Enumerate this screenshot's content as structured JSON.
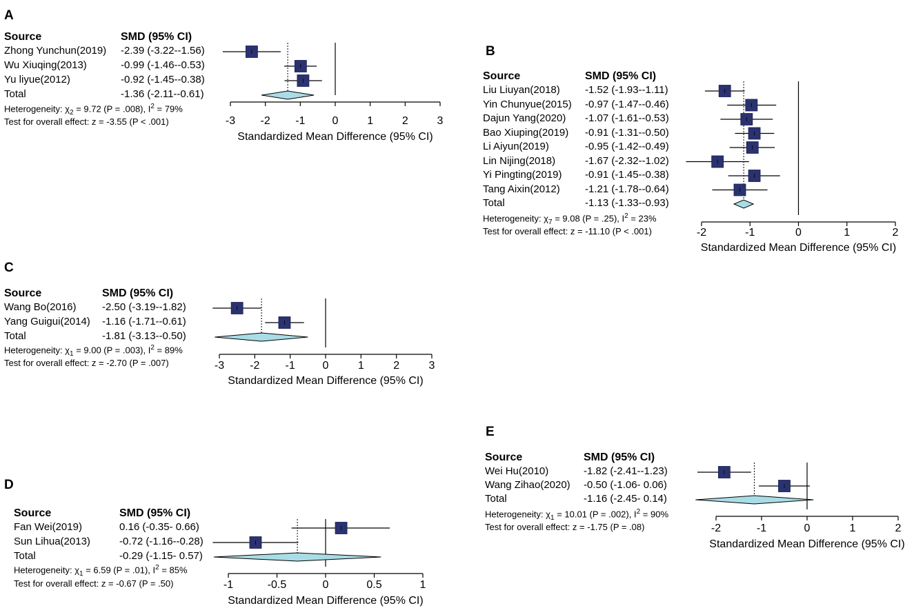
{
  "chart_data": [
    {
      "type": "forest",
      "panel": "A",
      "header_source": "Source",
      "header_effect": "SMD (95% CI)",
      "studies": [
        {
          "name": "Zhong Yunchun(2019)",
          "ci_text": "-2.39 (-3.22--1.56)",
          "smd": -2.39,
          "lower": -3.22,
          "upper": -1.56
        },
        {
          "name": "Wu Xiuqing(2013)",
          "ci_text": "-0.99 (-1.46--0.53)",
          "smd": -0.99,
          "lower": -1.46,
          "upper": -0.53
        },
        {
          "name": "Yu liyue(2012)",
          "ci_text": "-0.92 (-1.45--0.38)",
          "smd": -0.92,
          "lower": -1.45,
          "upper": -0.38
        }
      ],
      "total": {
        "name": "Total",
        "ci_text": "-1.36 (-2.11--0.61)",
        "smd": -1.36,
        "lower": -2.11,
        "upper": -0.61
      },
      "heterogeneity": {
        "prefix": "Heterogeneity: χ",
        "df": "2",
        "rest": "= 9.72 (P = .008), I",
        "i2": "2",
        "end": "= 79%"
      },
      "overall": "Test for overall effect: z = -3.55 (P < .001)",
      "xlim": [
        -3,
        3
      ],
      "ticks": [
        -3,
        -2,
        -1,
        0,
        1,
        2,
        3
      ],
      "tick_labels": [
        "-3",
        "-2",
        "-1",
        "0",
        "1",
        "2",
        "3"
      ],
      "xlabel": "Standardized Mean Difference (95% CI)"
    },
    {
      "type": "forest",
      "panel": "B",
      "header_source": "Source",
      "header_effect": "SMD (95% CI)",
      "studies": [
        {
          "name": "Liu Liuyan(2018)",
          "ci_text": "-1.52 (-1.93--1.11)",
          "smd": -1.52,
          "lower": -1.93,
          "upper": -1.11
        },
        {
          "name": "Yin Chunyue(2015)",
          "ci_text": "-0.97 (-1.47--0.46)",
          "smd": -0.97,
          "lower": -1.47,
          "upper": -0.46
        },
        {
          "name": "Dajun Yang(2020)",
          "ci_text": "-1.07 (-1.61--0.53)",
          "smd": -1.07,
          "lower": -1.61,
          "upper": -0.53
        },
        {
          "name": "Bao Xiuping(2019)",
          "ci_text": "-0.91 (-1.31--0.50)",
          "smd": -0.91,
          "lower": -1.31,
          "upper": -0.5
        },
        {
          "name": "Li Aiyun(2019)",
          "ci_text": "-0.95 (-1.42--0.49)",
          "smd": -0.95,
          "lower": -1.42,
          "upper": -0.49
        },
        {
          "name": "Lin Nijing(2018)",
          "ci_text": "-1.67 (-2.32--1.02)",
          "smd": -1.67,
          "lower": -2.32,
          "upper": -1.02
        },
        {
          "name": "Yi Pingting(2019)",
          "ci_text": "-0.91 (-1.45--0.38)",
          "smd": -0.91,
          "lower": -1.45,
          "upper": -0.38
        },
        {
          "name": "Tang Aixin(2012)",
          "ci_text": "-1.21 (-1.78--0.64)",
          "smd": -1.21,
          "lower": -1.78,
          "upper": -0.64
        }
      ],
      "total": {
        "name": "Total",
        "ci_text": "-1.13 (-1.33--0.93)",
        "smd": -1.13,
        "lower": -1.33,
        "upper": -0.93
      },
      "heterogeneity": {
        "prefix": "Heterogeneity: χ",
        "df": "7",
        "rest": "= 9.08 (P = .25), I",
        "i2": "2",
        "end": "= 23%"
      },
      "overall": "Test for overall effect: z = -11.10 (P < .001)",
      "xlim": [
        -2,
        2
      ],
      "ticks": [
        -2,
        -1,
        0,
        1,
        2
      ],
      "tick_labels": [
        "-2",
        "-1",
        "0",
        "1",
        "2"
      ],
      "xlabel": "Standardized Mean Difference (95% CI)"
    },
    {
      "type": "forest",
      "panel": "C",
      "header_source": "Source",
      "header_effect": "SMD (95% CI)",
      "studies": [
        {
          "name": "Wang Bo(2016)",
          "ci_text": "-2.50 (-3.19--1.82)",
          "smd": -2.5,
          "lower": -3.19,
          "upper": -1.82
        },
        {
          "name": "Yang Guigui(2014)",
          "ci_text": "-1.16 (-1.71--0.61)",
          "smd": -1.16,
          "lower": -1.71,
          "upper": -0.61
        }
      ],
      "total": {
        "name": "Total",
        "ci_text": "-1.81 (-3.13--0.50)",
        "smd": -1.81,
        "lower": -3.13,
        "upper": -0.5
      },
      "heterogeneity": {
        "prefix": "Heterogeneity: χ",
        "df": "1",
        "rest": "= 9.00 (P = .003), I",
        "i2": "2",
        "end": "= 89%"
      },
      "overall": "Test for overall effect: z = -2.70 (P = .007)",
      "xlim": [
        -3,
        3
      ],
      "ticks": [
        -3,
        -2,
        -1,
        0,
        1,
        2,
        3
      ],
      "tick_labels": [
        "-3",
        "-2",
        "-1",
        "0",
        "1",
        "2",
        "3"
      ],
      "xlabel": "Standardized Mean Difference (95% CI)"
    },
    {
      "type": "forest",
      "panel": "D",
      "header_source": "Source",
      "header_effect": "SMD (95% CI)",
      "studies": [
        {
          "name": "Fan Wei(2019)",
          "ci_text": "0.16 (-0.35- 0.66)",
          "smd": 0.16,
          "lower": -0.35,
          "upper": 0.66
        },
        {
          "name": "Sun Lihua(2013)",
          "ci_text": "-0.72 (-1.16--0.28)",
          "smd": -0.72,
          "lower": -1.16,
          "upper": -0.28
        }
      ],
      "total": {
        "name": "Total",
        "ci_text": "-0.29 (-1.15- 0.57)",
        "smd": -0.29,
        "lower": -1.15,
        "upper": 0.57
      },
      "heterogeneity": {
        "prefix": "Heterogeneity: χ",
        "df": "1",
        "rest": "= 6.59 (P = .01), I",
        "i2": "2",
        "end": "= 85%"
      },
      "overall": "Test for overall effect: z = -0.67 (P = .50)",
      "xlim": [
        -1,
        1
      ],
      "ticks": [
        -1,
        -0.5,
        0,
        0.5,
        1
      ],
      "tick_labels": [
        "-1",
        "-0.5",
        "0",
        "0.5",
        "1"
      ],
      "xlabel": "Standardized Mean Difference (95% CI)"
    },
    {
      "type": "forest",
      "panel": "E",
      "header_source": "Source",
      "header_effect": "SMD (95% CI)",
      "studies": [
        {
          "name": "Wei Hu(2010)",
          "ci_text": "-1.82 (-2.41--1.23)",
          "smd": -1.82,
          "lower": -2.41,
          "upper": -1.23
        },
        {
          "name": "Wang Zihao(2020)",
          "ci_text": "-0.50 (-1.06- 0.06)",
          "smd": -0.5,
          "lower": -1.06,
          "upper": 0.06
        }
      ],
      "total": {
        "name": "Total",
        "ci_text": "-1.16 (-2.45- 0.14)",
        "smd": -1.16,
        "lower": -2.45,
        "upper": 0.14
      },
      "heterogeneity": {
        "prefix": "Heterogeneity: χ",
        "df": "1",
        "rest": "= 10.01 (P = .002), I",
        "i2": "2",
        "end": "= 90%"
      },
      "overall": "Test for overall effect: z = -1.75 (P = .08)",
      "xlim": [
        -2,
        2
      ],
      "ticks": [
        -2,
        -1,
        0,
        1,
        2
      ],
      "tick_labels": [
        "-2",
        "-1",
        "0",
        "1",
        "2"
      ],
      "xlabel": "Standardized Mean Difference (95% CI)"
    }
  ],
  "colors": {
    "square": "#2b3270",
    "diamond": "#a9dde6",
    "line": "#000000"
  }
}
